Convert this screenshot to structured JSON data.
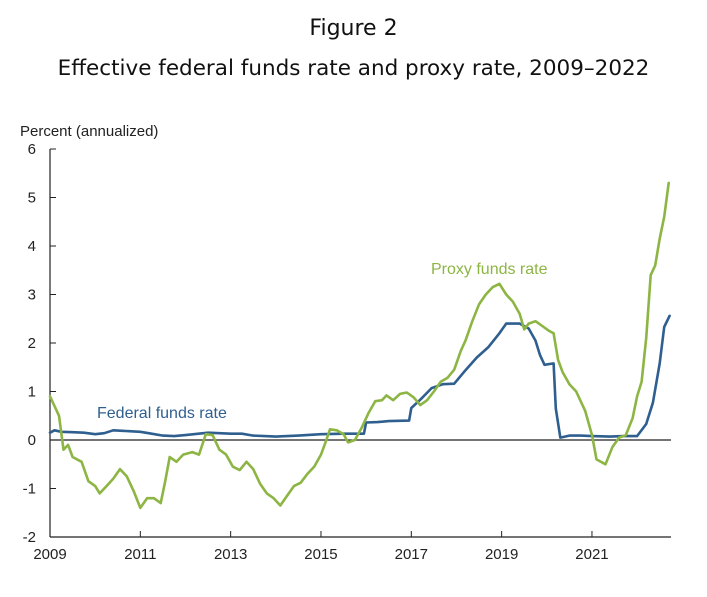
{
  "figure_label": "Figure 2",
  "title": "Effective federal funds rate and proxy rate, 2009–2022",
  "colors": {
    "fed": "#2f5f8f",
    "proxy": "#8db544",
    "axis": "#222222"
  },
  "chart_data": {
    "type": "line",
    "ylabel": "Percent (annualized)",
    "xlim": [
      2009,
      2022.75
    ],
    "ylim": [
      -2,
      6
    ],
    "x_ticks": [
      2009,
      2011,
      2013,
      2015,
      2017,
      2019,
      2021
    ],
    "x_tick_labels": [
      "2009",
      "2011",
      "2013",
      "2015",
      "2017",
      "2019",
      "2021"
    ],
    "y_ticks": [
      -2,
      -1,
      0,
      1,
      2,
      3,
      4,
      5,
      6
    ],
    "y_tick_labels": [
      "-2",
      "-1",
      "0",
      "1",
      "2",
      "3",
      "4",
      "5",
      "6"
    ],
    "grid": false,
    "annotations": [
      {
        "text": "Federal funds rate",
        "series": "Federal funds rate"
      },
      {
        "text": "Proxy funds rate",
        "series": "Proxy funds rate"
      }
    ],
    "series": [
      {
        "name": "Federal funds rate",
        "points": [
          [
            2009.0,
            0.15
          ],
          [
            2009.1,
            0.2
          ],
          [
            2009.25,
            0.17
          ],
          [
            2009.5,
            0.16
          ],
          [
            2009.75,
            0.15
          ],
          [
            2010.0,
            0.12
          ],
          [
            2010.2,
            0.14
          ],
          [
            2010.4,
            0.2
          ],
          [
            2010.6,
            0.19
          ],
          [
            2011.0,
            0.17
          ],
          [
            2011.25,
            0.13
          ],
          [
            2011.5,
            0.09
          ],
          [
            2011.75,
            0.08
          ],
          [
            2012.0,
            0.1
          ],
          [
            2012.5,
            0.15
          ],
          [
            2013.0,
            0.13
          ],
          [
            2013.25,
            0.13
          ],
          [
            2013.5,
            0.09
          ],
          [
            2013.75,
            0.08
          ],
          [
            2014.0,
            0.07
          ],
          [
            2014.5,
            0.09
          ],
          [
            2015.0,
            0.12
          ],
          [
            2015.5,
            0.13
          ],
          [
            2015.95,
            0.13
          ],
          [
            2016.0,
            0.36
          ],
          [
            2016.25,
            0.37
          ],
          [
            2016.5,
            0.39
          ],
          [
            2016.95,
            0.4
          ],
          [
            2017.0,
            0.66
          ],
          [
            2017.2,
            0.83
          ],
          [
            2017.45,
            1.07
          ],
          [
            2017.7,
            1.15
          ],
          [
            2017.95,
            1.16
          ],
          [
            2018.2,
            1.44
          ],
          [
            2018.45,
            1.7
          ],
          [
            2018.7,
            1.91
          ],
          [
            2018.95,
            2.2
          ],
          [
            2019.1,
            2.4
          ],
          [
            2019.4,
            2.4
          ],
          [
            2019.6,
            2.3
          ],
          [
            2019.75,
            2.05
          ],
          [
            2019.85,
            1.75
          ],
          [
            2019.95,
            1.55
          ],
          [
            2020.15,
            1.58
          ],
          [
            2020.2,
            0.65
          ],
          [
            2020.3,
            0.05
          ],
          [
            2020.5,
            0.09
          ],
          [
            2020.75,
            0.09
          ],
          [
            2021.0,
            0.08
          ],
          [
            2021.4,
            0.07
          ],
          [
            2021.7,
            0.08
          ],
          [
            2022.0,
            0.08
          ],
          [
            2022.2,
            0.33
          ],
          [
            2022.35,
            0.77
          ],
          [
            2022.5,
            1.58
          ],
          [
            2022.6,
            2.33
          ],
          [
            2022.72,
            2.56
          ]
        ]
      },
      {
        "name": "Proxy funds rate",
        "points": [
          [
            2009.0,
            0.9
          ],
          [
            2009.1,
            0.7
          ],
          [
            2009.2,
            0.5
          ],
          [
            2009.3,
            -0.2
          ],
          [
            2009.4,
            -0.1
          ],
          [
            2009.5,
            -0.35
          ],
          [
            2009.7,
            -0.45
          ],
          [
            2009.85,
            -0.85
          ],
          [
            2010.0,
            -0.95
          ],
          [
            2010.1,
            -1.1
          ],
          [
            2010.25,
            -0.95
          ],
          [
            2010.4,
            -0.8
          ],
          [
            2010.55,
            -0.6
          ],
          [
            2010.7,
            -0.75
          ],
          [
            2010.85,
            -1.05
          ],
          [
            2011.0,
            -1.4
          ],
          [
            2011.15,
            -1.2
          ],
          [
            2011.3,
            -1.2
          ],
          [
            2011.45,
            -1.3
          ],
          [
            2011.55,
            -0.85
          ],
          [
            2011.65,
            -0.35
          ],
          [
            2011.8,
            -0.45
          ],
          [
            2011.95,
            -0.3
          ],
          [
            2012.15,
            -0.25
          ],
          [
            2012.3,
            -0.3
          ],
          [
            2012.45,
            0.12
          ],
          [
            2012.6,
            0.1
          ],
          [
            2012.75,
            -0.2
          ],
          [
            2012.9,
            -0.3
          ],
          [
            2013.05,
            -0.55
          ],
          [
            2013.2,
            -0.62
          ],
          [
            2013.35,
            -0.45
          ],
          [
            2013.5,
            -0.6
          ],
          [
            2013.65,
            -0.9
          ],
          [
            2013.8,
            -1.1
          ],
          [
            2013.95,
            -1.2
          ],
          [
            2014.1,
            -1.35
          ],
          [
            2014.25,
            -1.15
          ],
          [
            2014.4,
            -0.95
          ],
          [
            2014.55,
            -0.88
          ],
          [
            2014.7,
            -0.7
          ],
          [
            2014.85,
            -0.55
          ],
          [
            2015.0,
            -0.3
          ],
          [
            2015.1,
            -0.05
          ],
          [
            2015.2,
            0.22
          ],
          [
            2015.35,
            0.2
          ],
          [
            2015.5,
            0.12
          ],
          [
            2015.6,
            -0.05
          ],
          [
            2015.75,
            0.0
          ],
          [
            2015.9,
            0.25
          ],
          [
            2016.05,
            0.55
          ],
          [
            2016.2,
            0.8
          ],
          [
            2016.35,
            0.82
          ],
          [
            2016.45,
            0.92
          ],
          [
            2016.6,
            0.82
          ],
          [
            2016.75,
            0.95
          ],
          [
            2016.9,
            0.98
          ],
          [
            2017.05,
            0.88
          ],
          [
            2017.2,
            0.72
          ],
          [
            2017.35,
            0.82
          ],
          [
            2017.5,
            1.0
          ],
          [
            2017.65,
            1.2
          ],
          [
            2017.8,
            1.28
          ],
          [
            2017.95,
            1.45
          ],
          [
            2018.1,
            1.85
          ],
          [
            2018.2,
            2.05
          ],
          [
            2018.35,
            2.45
          ],
          [
            2018.5,
            2.8
          ],
          [
            2018.65,
            3.0
          ],
          [
            2018.8,
            3.15
          ],
          [
            2018.95,
            3.22
          ],
          [
            2019.1,
            3.0
          ],
          [
            2019.25,
            2.85
          ],
          [
            2019.4,
            2.6
          ],
          [
            2019.5,
            2.28
          ],
          [
            2019.6,
            2.4
          ],
          [
            2019.75,
            2.45
          ],
          [
            2019.9,
            2.35
          ],
          [
            2020.05,
            2.25
          ],
          [
            2020.15,
            2.2
          ],
          [
            2020.25,
            1.65
          ],
          [
            2020.35,
            1.4
          ],
          [
            2020.5,
            1.15
          ],
          [
            2020.65,
            1.0
          ],
          [
            2020.85,
            0.6
          ],
          [
            2021.0,
            0.1
          ],
          [
            2021.1,
            -0.4
          ],
          [
            2021.3,
            -0.5
          ],
          [
            2021.45,
            -0.15
          ],
          [
            2021.6,
            0.05
          ],
          [
            2021.75,
            0.1
          ],
          [
            2021.9,
            0.45
          ],
          [
            2022.0,
            0.9
          ],
          [
            2022.1,
            1.2
          ],
          [
            2022.2,
            2.1
          ],
          [
            2022.3,
            3.4
          ],
          [
            2022.4,
            3.6
          ],
          [
            2022.5,
            4.15
          ],
          [
            2022.6,
            4.6
          ],
          [
            2022.7,
            5.3
          ]
        ]
      }
    ]
  }
}
